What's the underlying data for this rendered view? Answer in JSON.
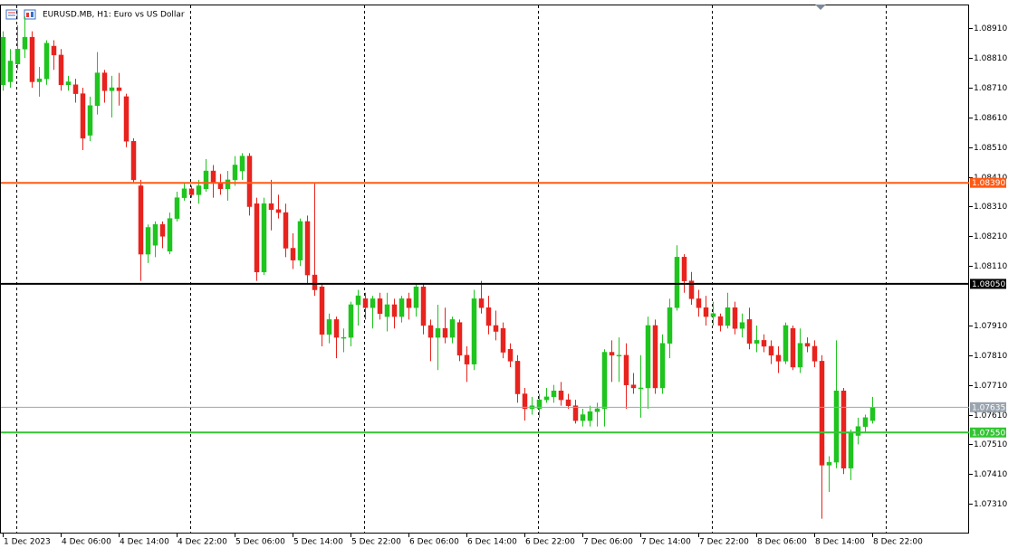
{
  "chart_data": {
    "type": "candlestick",
    "title": "EURUSD.MB, H1:  Euro vs US Dollar",
    "categories": [
      "1 Dec 2023",
      null,
      null,
      null,
      null,
      null,
      null,
      null,
      "4 Dec 06:00",
      null,
      null,
      null,
      null,
      null,
      null,
      null,
      "4 Dec 14:00",
      null,
      null,
      null,
      null,
      null,
      null,
      null,
      "4 Dec 22:00",
      null,
      null,
      null,
      null,
      null,
      null,
      null,
      "5 Dec 06:00",
      null,
      null,
      null,
      null,
      null,
      null,
      null,
      "5 Dec 14:00",
      null,
      null,
      null,
      null,
      null,
      null,
      null,
      "5 Dec 22:00",
      null,
      null,
      null,
      null,
      null,
      null,
      null,
      "6 Dec 06:00",
      null,
      null,
      null,
      null,
      null,
      null,
      null,
      "6 Dec 14:00",
      null,
      null,
      null,
      null,
      null,
      null,
      null,
      "6 Dec 22:00",
      null,
      null,
      null,
      null,
      null,
      null,
      null,
      "7 Dec 06:00",
      null,
      null,
      null,
      null,
      null,
      null,
      null,
      "7 Dec 14:00",
      null,
      null,
      null,
      null,
      null,
      null,
      null,
      "7 Dec 22:00",
      null,
      null,
      null,
      null,
      null,
      null,
      null,
      "8 Dec 06:00",
      null,
      null,
      null,
      null,
      null,
      null,
      null,
      "8 Dec 14:00",
      null,
      null,
      null,
      null,
      null,
      null,
      null,
      "8 Dec 22:00"
    ],
    "open": [
      1.0872,
      1.0873,
      1.0879,
      1.0884,
      1.0888,
      1.0873,
      1.0874,
      1.0885,
      1.0882,
      1.0872,
      1.0872,
      1.0869,
      1.0855,
      1.0865,
      1.0876,
      1.087,
      1.0871,
      1.0868,
      1.0853,
      1.0838,
      1.0815,
      1.0818,
      1.0825,
      1.0816,
      1.0827,
      1.0834,
      1.0837,
      1.0835,
      1.0837,
      1.0843,
      1.0839,
      1.0837,
      1.084,
      1.0843,
      1.0848,
      1.0832,
      1.0809,
      1.0832,
      1.083,
      1.0829,
      1.0817,
      1.0813,
      1.0826,
      1.0808,
      1.0804,
      1.0788,
      1.0793,
      1.0787,
      1.0787,
      1.0798,
      1.08,
      1.0797,
      1.08,
      1.0794,
      1.0798,
      1.0794,
      1.08,
      1.0797,
      1.0804,
      1.0791,
      1.0787,
      1.079,
      1.0787,
      1.0792,
      1.0781,
      1.0778,
      1.08,
      1.0797,
      1.0791,
      1.079,
      1.0783,
      1.0779,
      1.0768,
      1.0763,
      1.0763,
      1.0766,
      1.0767,
      1.0769,
      1.0766,
      1.0764,
      1.0759,
      1.0759,
      1.0762,
      1.0763,
      1.0782,
      1.0781,
      1.0781,
      1.0771,
      1.077,
      1.077,
      1.0791,
      1.077,
      1.0785,
      1.0797,
      1.0814,
      1.0806,
      1.08,
      1.0797,
      1.0794,
      1.0794,
      1.0791,
      1.0797,
      1.079,
      1.0793,
      1.0785,
      1.0786,
      1.0784,
      1.0781,
      1.0779,
      1.079,
      1.0777,
      1.0785,
      1.0784,
      1.0779,
      1.0744,
      1.0745,
      1.0769,
      1.0743,
      1.0754,
      1.0757,
      1.0759
    ],
    "high": [
      1.089,
      1.0884,
      1.0892,
      1.0895,
      1.089,
      1.0878,
      1.0887,
      1.0887,
      1.0884,
      1.0875,
      1.0874,
      1.0871,
      1.0868,
      1.0883,
      1.0877,
      1.0875,
      1.0876,
      1.0869,
      1.0854,
      1.084,
      1.0825,
      1.0826,
      1.0826,
      1.0829,
      1.0836,
      1.0839,
      1.0838,
      1.084,
      1.0847,
      1.0845,
      1.0842,
      1.0843,
      1.0848,
      1.0849,
      1.0849,
      1.0834,
      1.0834,
      1.084,
      1.0835,
      1.0832,
      1.0822,
      1.0827,
      1.0828,
      1.0839,
      1.0805,
      1.0795,
      1.0794,
      1.079,
      1.0799,
      1.0803,
      1.0802,
      1.0801,
      1.0802,
      1.0802,
      1.08,
      1.0801,
      1.0802,
      1.0805,
      1.0805,
      1.0793,
      1.0798,
      1.0797,
      1.0794,
      1.0793,
      1.0784,
      1.0803,
      1.0806,
      1.0801,
      1.0796,
      1.0792,
      1.0785,
      1.0781,
      1.077,
      1.0767,
      1.0768,
      1.077,
      1.0771,
      1.0772,
      1.0768,
      1.0766,
      1.0763,
      1.0764,
      1.0765,
      1.0783,
      1.0786,
      1.0787,
      1.0785,
      1.0775,
      1.0781,
      1.0794,
      1.0793,
      1.0788,
      1.08,
      1.0818,
      1.0815,
      1.0809,
      1.0803,
      1.0801,
      1.0799,
      1.0795,
      1.0802,
      1.0799,
      1.0795,
      1.0797,
      1.0791,
      1.0788,
      1.0786,
      1.0784,
      1.0792,
      1.0791,
      1.079,
      1.0787,
      1.0786,
      1.0781,
      1.0747,
      1.0786,
      1.077,
      1.0756,
      1.076,
      1.0761,
      1.0767
    ],
    "low": [
      1.087,
      1.0871,
      1.0877,
      1.0881,
      1.0871,
      1.0868,
      1.0872,
      1.0877,
      1.087,
      1.087,
      1.0866,
      1.085,
      1.0853,
      1.0862,
      1.0866,
      1.0861,
      1.0865,
      1.0851,
      1.0839,
      1.0806,
      1.0812,
      1.0814,
      1.0817,
      1.0815,
      1.0826,
      1.0833,
      1.0834,
      1.0832,
      1.0836,
      1.0834,
      1.0835,
      1.0833,
      1.0838,
      1.084,
      1.0828,
      1.0806,
      1.0808,
      1.0823,
      1.0827,
      1.0814,
      1.081,
      1.0811,
      1.0805,
      1.0801,
      1.0784,
      1.0785,
      1.078,
      1.0782,
      1.0784,
      1.0791,
      1.0793,
      1.079,
      1.0793,
      1.0789,
      1.079,
      1.0792,
      1.0793,
      1.0794,
      1.0788,
      1.0779,
      1.0776,
      1.0785,
      1.0785,
      1.0779,
      1.0772,
      1.0776,
      1.0795,
      1.0788,
      1.0786,
      1.078,
      1.0777,
      1.0765,
      1.0759,
      1.0761,
      1.076,
      1.0765,
      1.0765,
      1.0764,
      1.0763,
      1.0758,
      1.0757,
      1.0757,
      1.0757,
      1.0757,
      1.0772,
      1.0772,
      1.0763,
      1.0768,
      1.076,
      1.0763,
      1.0768,
      1.0768,
      1.078,
      1.0796,
      1.0802,
      1.0798,
      1.0794,
      1.0791,
      1.0791,
      1.0789,
      1.079,
      1.0788,
      1.0787,
      1.0783,
      1.0782,
      1.0782,
      1.0778,
      1.0775,
      1.0778,
      1.0776,
      1.0775,
      1.0782,
      1.0777,
      1.0726,
      1.0735,
      1.0743,
      1.0741,
      1.0739,
      1.0751,
      1.0755,
      1.0758
    ],
    "close": [
      1.0888,
      1.088,
      1.0884,
      1.0888,
      1.0873,
      1.0874,
      1.0886,
      1.0882,
      1.0872,
      1.0873,
      1.0869,
      1.0854,
      1.0865,
      1.0876,
      1.087,
      1.0871,
      1.087,
      1.0853,
      1.084,
      1.0815,
      1.0824,
      1.0825,
      1.0821,
      1.0827,
      1.0834,
      1.0837,
      1.0835,
      1.0838,
      1.0843,
      1.0839,
      1.0837,
      1.084,
      1.0845,
      1.0848,
      1.0831,
      1.0809,
      1.0832,
      1.083,
      1.0829,
      1.0817,
      1.0813,
      1.0826,
      1.0808,
      1.0803,
      1.0788,
      1.0793,
      1.0787,
      1.0787,
      1.0798,
      1.0801,
      1.0797,
      1.08,
      1.0795,
      1.0798,
      1.0794,
      1.08,
      1.0797,
      1.0804,
      1.0791,
      1.0787,
      1.079,
      1.0787,
      1.0793,
      1.0781,
      1.0778,
      1.08,
      1.0797,
      1.0791,
      1.0789,
      1.0782,
      1.0779,
      1.0768,
      1.0763,
      1.0764,
      1.0766,
      1.0767,
      1.0769,
      1.0766,
      1.0764,
      1.0759,
      1.0761,
      1.0762,
      1.0763,
      1.0782,
      1.0781,
      1.0781,
      1.0771,
      1.077,
      1.077,
      1.0791,
      1.077,
      1.0785,
      1.0797,
      1.0814,
      1.0806,
      1.08,
      1.0797,
      1.0794,
      1.0795,
      1.0791,
      1.0797,
      1.079,
      1.0792,
      1.0785,
      1.0786,
      1.0784,
      1.0781,
      1.0779,
      1.0791,
      1.0777,
      1.0785,
      1.0784,
      1.0779,
      1.0744,
      1.0745,
      1.0769,
      1.0743,
      1.0755,
      1.0757,
      1.076,
      1.07635
    ],
    "up_color": "#1fc41f",
    "down_color": "#e8231e",
    "ylim": [
      1.0721,
      1.0899
    ],
    "yticks": [
      {
        "value": 1.0891,
        "label": "1.08910"
      },
      {
        "value": 1.0881,
        "label": "1.08810"
      },
      {
        "value": 1.0871,
        "label": "1.08710"
      },
      {
        "value": 1.0861,
        "label": "1.08610"
      },
      {
        "value": 1.0851,
        "label": "1.08510"
      },
      {
        "value": 1.0841,
        "label": "1.08410"
      },
      {
        "value": 1.0831,
        "label": "1.08310"
      },
      {
        "value": 1.0821,
        "label": "1.08210"
      },
      {
        "value": 1.0811,
        "label": "1.08110"
      },
      {
        "value": 1.0791,
        "label": "1.07910"
      },
      {
        "value": 1.0781,
        "label": "1.07810"
      },
      {
        "value": 1.0771,
        "label": "1.07710"
      },
      {
        "value": 1.0761,
        "label": "1.07610"
      },
      {
        "value": 1.0751,
        "label": "1.07510"
      },
      {
        "value": 1.0741,
        "label": "1.07410"
      },
      {
        "value": 1.0731,
        "label": "1.07310"
      }
    ],
    "levels": [
      {
        "value": 1.0839,
        "label": "1.08390",
        "color": "#ff5a14"
      },
      {
        "value": 1.0805,
        "label": "1.08050",
        "color": "#000000"
      },
      {
        "value": 1.0755,
        "label": "1.07550",
        "color": "#33c433"
      }
    ],
    "last_price": {
      "value": 1.07635,
      "label": "1.07635",
      "color": "#9aa4ae"
    }
  }
}
